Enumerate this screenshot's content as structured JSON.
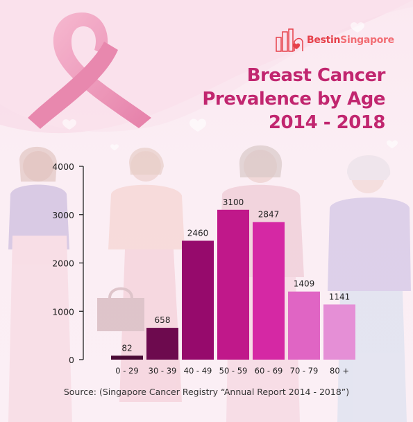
{
  "brand": {
    "name_part1": "Bestin",
    "name_part2": "Singapore"
  },
  "title": {
    "line1": "Breast Cancer",
    "line2": "Prevalence by Age",
    "line3": "2014 - 2018"
  },
  "source": "Source: (Singapore Cancer Registry “Annual Report 2014 - 2018”)",
  "colors": {
    "title": "#c1266f",
    "brand": "#e6404a",
    "ribbon": "#ec8bb0",
    "background": "#fbedf3"
  },
  "chart_data": {
    "type": "bar",
    "title": "Breast Cancer Prevalence by Age 2014 - 2018",
    "xlabel": "",
    "ylabel": "",
    "ylim": [
      0,
      4000
    ],
    "yticks": [
      0,
      1000,
      2000,
      3000,
      4000
    ],
    "categories": [
      "0 - 29",
      "30 - 39",
      "40 - 49",
      "50 - 59",
      "60 - 69",
      "70 - 79",
      "80 +"
    ],
    "values": [
      82,
      658,
      2460,
      3100,
      2847,
      1409,
      1141
    ],
    "bar_colors": [
      "#4a0a35",
      "#6d0a4e",
      "#960a6c",
      "#c0188a",
      "#d528a4",
      "#e065c4",
      "#e58fd6"
    ],
    "grid": false,
    "legend": "none"
  }
}
